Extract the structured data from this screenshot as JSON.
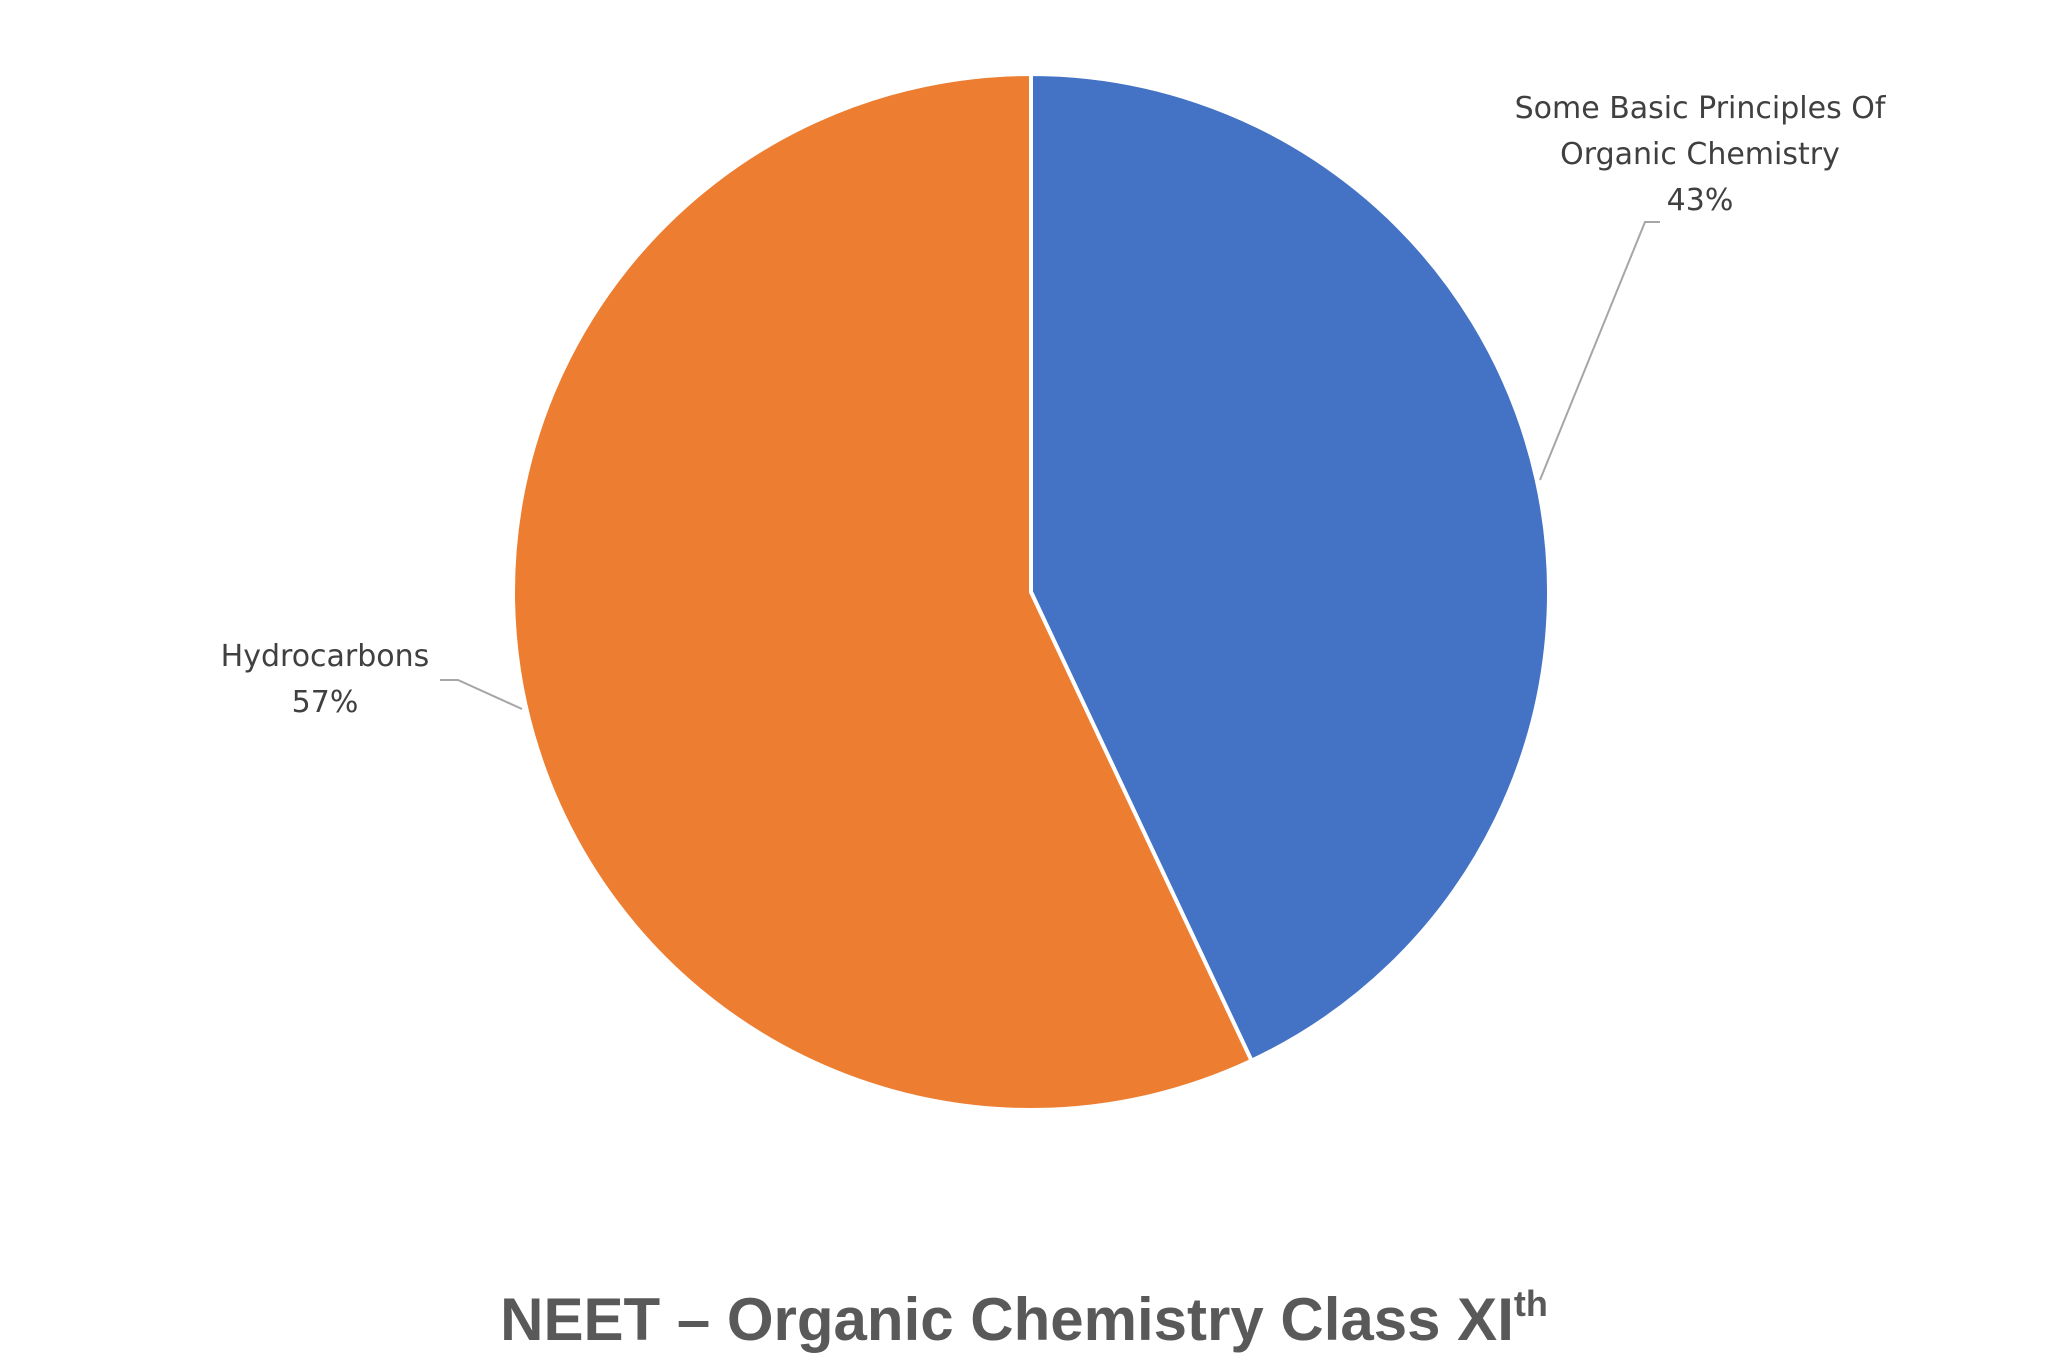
{
  "chart_data": {
    "type": "pie",
    "title": "NEET – Organic Chemistry Class XI",
    "title_superscript": "th",
    "slices": [
      {
        "label": "Some Basic Principles Of Organic Chemistry",
        "label_lines": [
          "Some Basic Principles Of",
          "Organic Chemistry"
        ],
        "value": 43,
        "value_label": "43%",
        "color": "#4472C4"
      },
      {
        "label": "Hydrocarbons",
        "label_lines": [
          "Hydrocarbons"
        ],
        "value": 57,
        "value_label": "57%",
        "color": "#ED7D31"
      }
    ],
    "start_angle": "12 o'clock",
    "direction": "clockwise",
    "legend": "none",
    "data_labels": "outside with leader lines"
  }
}
